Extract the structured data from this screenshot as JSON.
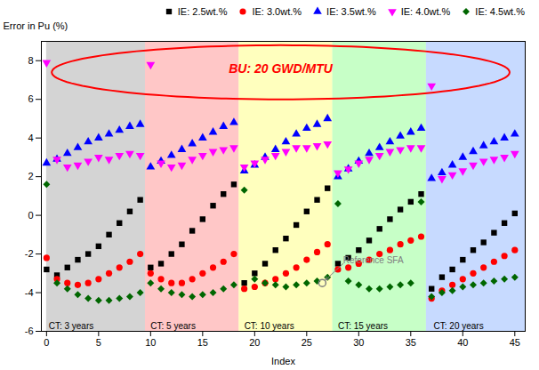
{
  "chart_data": {
    "type": "scatter",
    "xlabel": "Index",
    "ylabel": "Error in Pu (%)",
    "xlim": [
      -0.5,
      46
    ],
    "ylim": [
      -6,
      9
    ],
    "xticks": [
      0,
      5,
      10,
      15,
      20,
      25,
      30,
      35,
      40,
      45
    ],
    "yticks": [
      -6,
      -4,
      -2,
      0,
      2,
      4,
      6,
      8
    ],
    "grid": false,
    "legend": "upper right",
    "series": [
      {
        "name": "IE: 2.5wt.%",
        "color": "black",
        "marker": "square",
        "x": [
          0,
          1,
          2,
          3,
          4,
          5,
          6,
          7,
          8,
          9,
          10,
          11,
          12,
          13,
          14,
          15,
          16,
          17,
          18,
          19,
          20,
          21,
          22,
          23,
          24,
          25,
          26,
          27,
          28,
          29,
          30,
          31,
          32,
          33,
          34,
          35,
          36,
          37,
          38,
          39,
          40,
          41,
          42,
          43,
          44,
          45
        ],
        "values": [
          -2.8,
          -3.1,
          -2.7,
          -2.3,
          -2.0,
          -1.6,
          -1.0,
          -0.4,
          0.2,
          0.8,
          -2.7,
          -2.5,
          -2.0,
          -1.5,
          -0.8,
          -0.2,
          0.5,
          1.1,
          1.6,
          -3.5,
          -3.0,
          -2.5,
          -1.8,
          -1.2,
          -0.5,
          0.2,
          0.8,
          1.4,
          -2.5,
          -2.2,
          -1.8,
          -1.3,
          -0.7,
          -0.2,
          0.3,
          0.7,
          1.1,
          -3.8,
          -3.2,
          -2.8,
          -2.3,
          -1.8,
          -1.4,
          -0.9,
          -0.4,
          0.1
        ]
      },
      {
        "name": "IE: 3.0wt.%",
        "color": "red",
        "marker": "circle",
        "x": [
          0,
          1,
          2,
          3,
          4,
          5,
          6,
          7,
          8,
          9,
          10,
          11,
          12,
          13,
          14,
          15,
          16,
          17,
          18,
          19,
          20,
          21,
          22,
          23,
          24,
          25,
          26,
          27,
          28,
          29,
          30,
          31,
          32,
          33,
          34,
          35,
          36,
          37,
          38,
          39,
          40,
          41,
          42,
          43,
          44,
          45
        ],
        "values": [
          -2.2,
          -3.3,
          -3.5,
          -3.6,
          -3.5,
          -3.3,
          -3.0,
          -2.7,
          -2.4,
          -2.0,
          -3.0,
          -3.3,
          -3.5,
          -3.5,
          -3.3,
          -3.0,
          -2.7,
          -2.4,
          -2.0,
          -3.8,
          -3.7,
          -3.5,
          -3.3,
          -3.0,
          -2.7,
          -2.3,
          -1.9,
          -1.5,
          -2.8,
          -2.7,
          -2.5,
          -2.3,
          -2.0,
          -1.8,
          -1.5,
          -1.3,
          -1.1,
          -4.3,
          -3.9,
          -3.6,
          -3.3,
          -3.0,
          -2.7,
          -2.4,
          -2.1,
          -1.8
        ]
      },
      {
        "name": "IE: 3.5wt.%",
        "color": "blue",
        "marker": "triangle-up",
        "x": [
          0,
          1,
          2,
          3,
          4,
          5,
          6,
          7,
          8,
          9,
          10,
          11,
          12,
          13,
          14,
          15,
          16,
          17,
          18,
          19,
          20,
          21,
          22,
          23,
          24,
          25,
          26,
          27,
          28,
          29,
          30,
          31,
          32,
          33,
          34,
          35,
          36,
          37,
          38,
          39,
          40,
          41,
          42,
          43,
          44,
          45
        ],
        "values": [
          2.7,
          2.9,
          3.2,
          3.5,
          3.8,
          4.0,
          4.2,
          4.4,
          4.6,
          4.7,
          2.5,
          2.8,
          3.1,
          3.4,
          3.7,
          4.0,
          4.3,
          4.6,
          4.8,
          2.3,
          2.6,
          3.0,
          3.4,
          3.8,
          4.2,
          4.5,
          4.7,
          5.0,
          2.0,
          2.4,
          2.8,
          3.2,
          3.5,
          3.8,
          4.1,
          4.3,
          4.5,
          1.9,
          2.2,
          2.6,
          3.0,
          3.3,
          3.6,
          3.8,
          4.0,
          4.2
        ]
      },
      {
        "name": "IE: 4.0wt.%",
        "color": "magenta",
        "marker": "triangle-down",
        "x": [
          0,
          1,
          2,
          3,
          4,
          5,
          6,
          7,
          8,
          9,
          10,
          11,
          12,
          13,
          14,
          15,
          16,
          17,
          18,
          19,
          20,
          21,
          22,
          23,
          24,
          25,
          26,
          27,
          28,
          29,
          30,
          31,
          32,
          33,
          34,
          35,
          36,
          37,
          38,
          39,
          40,
          41,
          42,
          43,
          44,
          45
        ],
        "values": [
          7.9,
          2.9,
          2.5,
          2.6,
          2.8,
          3.0,
          2.9,
          3.1,
          3.2,
          3.1,
          7.8,
          2.7,
          2.5,
          2.6,
          2.9,
          3.1,
          3.3,
          3.4,
          3.5,
          2.5,
          2.7,
          2.9,
          3.1,
          3.3,
          3.5,
          3.5,
          3.6,
          3.7,
          2.2,
          2.4,
          2.7,
          2.9,
          3.1,
          3.3,
          3.4,
          3.5,
          3.5,
          6.7,
          1.9,
          2.1,
          2.3,
          2.6,
          2.8,
          2.9,
          3.0,
          3.2
        ]
      },
      {
        "name": "IE: 4.5wt.%",
        "color": "#006600",
        "marker": "diamond",
        "x": [
          0,
          1,
          2,
          3,
          4,
          5,
          6,
          7,
          8,
          9,
          10,
          11,
          12,
          13,
          14,
          15,
          16,
          17,
          18,
          19,
          20,
          21,
          22,
          23,
          24,
          25,
          26,
          27,
          28,
          29,
          30,
          31,
          32,
          33,
          34,
          35,
          36,
          37,
          38,
          39,
          40,
          41,
          42,
          43,
          44,
          45
        ],
        "values": [
          1.6,
          -3.5,
          -3.8,
          -4.1,
          -4.3,
          -4.4,
          -4.4,
          -4.3,
          -4.2,
          -4.0,
          -3.5,
          -3.8,
          -4.0,
          -4.1,
          -4.2,
          -4.1,
          -4.0,
          -3.8,
          -3.6,
          1.3,
          -3.3,
          -3.5,
          -3.6,
          -3.7,
          -3.6,
          -3.5,
          -3.4,
          -3.2,
          0.6,
          -3.4,
          -3.6,
          -3.8,
          -3.8,
          -3.7,
          -3.6,
          -3.5,
          0.7,
          -4.2,
          -4.0,
          -3.9,
          -3.7,
          -3.6,
          -3.5,
          -3.4,
          -3.3,
          -3.2
        ]
      }
    ],
    "regions": [
      {
        "x": [
          0,
          9.5
        ],
        "color": "#b0b0b0"
      },
      {
        "x": [
          9.5,
          18.5
        ],
        "color": "#ff9999"
      },
      {
        "x": [
          18.5,
          27.5
        ],
        "color": "#ffff88"
      },
      {
        "x": [
          27.5,
          36.5
        ],
        "color": "#99ff99"
      },
      {
        "x": [
          36.5,
          46
        ],
        "color": "#99bbff"
      }
    ],
    "region_labels": [
      {
        "text": "CT: 3 years",
        "x": 0.2,
        "y": -5.55
      },
      {
        "text": "CT: 5 years",
        "x": 10.0,
        "y": -5.55
      },
      {
        "text": "CT: 10 years",
        "x": 19.0,
        "y": -5.55
      },
      {
        "text": "CT: 15 years",
        "x": 28.0,
        "y": -5.55
      },
      {
        "text": "CT: 20 years",
        "x": 37.2,
        "y": -5.55
      }
    ],
    "annotations": [
      {
        "text": "Reference SFA",
        "x": 28.5,
        "y": -2.5,
        "arrow_to": [
          26.5,
          -3.5
        ],
        "color": "gray"
      }
    ],
    "callout": {
      "text": "BU: 20 GWD/MTU",
      "x": 22.5,
      "y": 7.55,
      "color": "red",
      "ellipse": {
        "center": [
          22.5,
          7.4
        ],
        "width": 44.0,
        "height": 2.8,
        "angle": 0,
        "color": "red"
      }
    }
  }
}
